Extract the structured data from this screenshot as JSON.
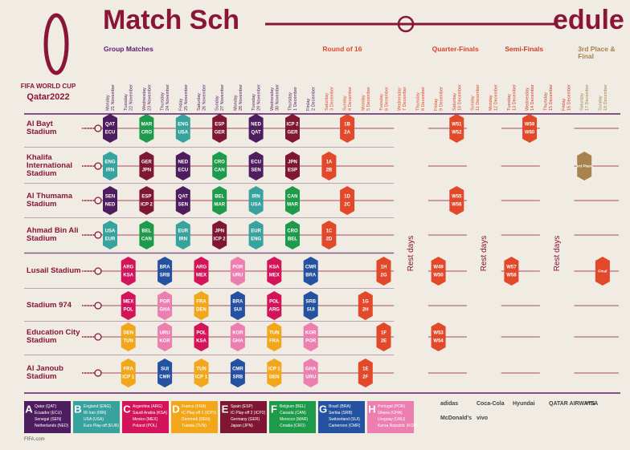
{
  "header": {
    "title_left": "Match Sch",
    "title_right": "edule",
    "logo_line1": "FIFA WORLD CUP",
    "logo_line2": "Qatar2022"
  },
  "stages": [
    {
      "label": "Group Matches",
      "color": "#5a2069",
      "days": [
        {
          "day": "Monday",
          "date": "21 November"
        },
        {
          "day": "Tuesday",
          "date": "22 November"
        },
        {
          "day": "Wednesday",
          "date": "23 November"
        },
        {
          "day": "Thursday",
          "date": "24 November"
        },
        {
          "day": "Friday",
          "date": "25 November"
        },
        {
          "day": "Saturday",
          "date": "26 November"
        },
        {
          "day": "Sunday",
          "date": "27 November"
        },
        {
          "day": "Monday",
          "date": "28 November"
        },
        {
          "day": "Tuesday",
          "date": "29 November"
        },
        {
          "day": "Wednesday",
          "date": "30 November"
        },
        {
          "day": "Thursday",
          "date": "1 December"
        },
        {
          "day": "Friday",
          "date": "2 December"
        }
      ]
    },
    {
      "label": "Round of 16",
      "color": "#e2482a",
      "days": [
        {
          "day": "Saturday",
          "date": "3 December"
        },
        {
          "day": "Sunday",
          "date": "4 December"
        },
        {
          "day": "Monday",
          "date": "5 December"
        },
        {
          "day": "Tuesday",
          "date": "6 December"
        },
        {
          "day": "Wednesday",
          "date": "7 December"
        },
        {
          "day": "Thursday",
          "date": "8 December"
        }
      ]
    },
    {
      "label": "Quarter-Finals",
      "color": "#d9452b",
      "days": [
        {
          "day": "Friday",
          "date": "9 December"
        },
        {
          "day": "Saturday",
          "date": "10 December"
        },
        {
          "day": "Sunday",
          "date": "11 December"
        },
        {
          "day": "Monday",
          "date": "12 December"
        }
      ]
    },
    {
      "label": "Semi-Finals",
      "color": "#c8402c",
      "days": [
        {
          "day": "Tuesday",
          "date": "13 December"
        },
        {
          "day": "Wednesday",
          "date": "14 December"
        },
        {
          "day": "Thursday",
          "date": "15 December"
        },
        {
          "day": "Friday",
          "date": "16 December"
        }
      ]
    },
    {
      "label": "3rd Place & Final",
      "color": "#a8824f",
      "days": [
        {
          "day": "Saturday",
          "date": "17 December"
        },
        {
          "day": "Sunday",
          "date": "18 December"
        }
      ]
    }
  ],
  "rest_days": [
    "Rest days",
    "Rest days",
    "Rest days"
  ],
  "stadiums": [
    {
      "name": "Al Bayt Stadium",
      "slots": [
        {
          "teams": [
            "QAT",
            "ECU"
          ],
          "color": "#4e1d5f"
        },
        null,
        {
          "teams": [
            "MAR",
            "CRO"
          ],
          "color": "#1e9a4b"
        },
        null,
        {
          "teams": [
            "ENG",
            "USA"
          ],
          "color": "#38a39e"
        },
        null,
        {
          "teams": [
            "ESP",
            "GER"
          ],
          "color": "#7f1734"
        },
        null,
        {
          "teams": [
            "NED",
            "QAT"
          ],
          "color": "#4e1d5f"
        },
        null,
        {
          "teams": [
            "ICP 2",
            "GER"
          ],
          "color": "#7f1734"
        },
        null,
        null,
        {
          "teams": [
            "1B",
            "2A"
          ],
          "color": "#e2482a"
        },
        null,
        null,
        null,
        null,
        null,
        {
          "teams": [
            "W51",
            "W52"
          ],
          "color": "#e2482a"
        },
        null,
        null,
        null,
        {
          "teams": [
            "W59",
            "W60"
          ],
          "color": "#e2482a"
        },
        null,
        null,
        null,
        null
      ]
    },
    {
      "name": "Khalifa International Stadium",
      "slots": [
        {
          "teams": [
            "ENG",
            "IRN"
          ],
          "color": "#38a39e"
        },
        null,
        {
          "teams": [
            "GER",
            "JPN"
          ],
          "color": "#7f1734"
        },
        null,
        {
          "teams": [
            "NED",
            "ECU"
          ],
          "color": "#4e1d5f"
        },
        null,
        {
          "teams": [
            "CRO",
            "CAN"
          ],
          "color": "#1e9a4b"
        },
        null,
        {
          "teams": [
            "ECU",
            "SEN"
          ],
          "color": "#4e1d5f"
        },
        null,
        {
          "teams": [
            "JPN",
            "ESP"
          ],
          "color": "#7f1734"
        },
        null,
        {
          "teams": [
            "1A",
            "2B"
          ],
          "color": "#e2482a"
        },
        null,
        null,
        null,
        null,
        null,
        null,
        null,
        null,
        null,
        null,
        null,
        null,
        null,
        {
          "teams": [
            "3rd Place"
          ],
          "color": "#a8824f"
        },
        null
      ]
    },
    {
      "name": "Al Thumama Stadium",
      "slots": [
        {
          "teams": [
            "SEN",
            "NED"
          ],
          "color": "#4e1d5f"
        },
        null,
        {
          "teams": [
            "ESP",
            "ICP 2"
          ],
          "color": "#7f1734"
        },
        null,
        {
          "teams": [
            "QAT",
            "SEN"
          ],
          "color": "#4e1d5f"
        },
        null,
        {
          "teams": [
            "BEL",
            "MAR"
          ],
          "color": "#1e9a4b"
        },
        null,
        {
          "teams": [
            "IRN",
            "USA"
          ],
          "color": "#38a39e"
        },
        null,
        {
          "teams": [
            "CAN",
            "MAR"
          ],
          "color": "#1e9a4b"
        },
        null,
        null,
        {
          "teams": [
            "1D",
            "2C"
          ],
          "color": "#e2482a"
        },
        null,
        null,
        null,
        null,
        null,
        {
          "teams": [
            "W55",
            "W56"
          ],
          "color": "#e2482a"
        },
        null,
        null,
        null,
        null,
        null,
        null,
        null,
        null
      ]
    },
    {
      "name": "Ahmad Bin Ali Stadium",
      "slots": [
        {
          "teams": [
            "USA",
            "EUR"
          ],
          "color": "#38a39e"
        },
        null,
        {
          "teams": [
            "BEL",
            "CAN"
          ],
          "color": "#1e9a4b"
        },
        null,
        {
          "teams": [
            "EUR",
            "IRN"
          ],
          "color": "#38a39e"
        },
        null,
        {
          "teams": [
            "JPN",
            "ICP 2"
          ],
          "color": "#7f1734"
        },
        null,
        {
          "teams": [
            "EUR",
            "ENG"
          ],
          "color": "#38a39e"
        },
        null,
        {
          "teams": [
            "CRO",
            "BEL"
          ],
          "color": "#1e9a4b"
        },
        null,
        {
          "teams": [
            "1C",
            "2D"
          ],
          "color": "#e2482a"
        },
        null,
        null,
        null,
        null,
        null,
        null,
        null,
        null,
        null,
        null,
        null,
        null,
        null,
        null,
        null
      ]
    },
    {
      "name": "Lusail Stadium",
      "slots": [
        null,
        {
          "teams": [
            "ARG",
            "KSA"
          ],
          "color": "#d3145a"
        },
        null,
        {
          "teams": [
            "BRA",
            "SRB"
          ],
          "color": "#2451a0"
        },
        null,
        {
          "teams": [
            "ARG",
            "MEX"
          ],
          "color": "#d3145a"
        },
        null,
        {
          "teams": [
            "POR",
            "URU"
          ],
          "color": "#ec7fb0"
        },
        null,
        {
          "teams": [
            "KSA",
            "MEX"
          ],
          "color": "#d3145a"
        },
        null,
        {
          "teams": [
            "CMR",
            "BRA"
          ],
          "color": "#2451a0"
        },
        null,
        null,
        null,
        {
          "teams": [
            "1H",
            "2G"
          ],
          "color": "#e2482a"
        },
        null,
        null,
        {
          "teams": [
            "W49",
            "W50"
          ],
          "color": "#e2482a"
        },
        null,
        null,
        null,
        {
          "teams": [
            "W57",
            "W58"
          ],
          "color": "#e2482a"
        },
        null,
        null,
        null,
        null,
        {
          "teams": [
            "Final"
          ],
          "color": "#e2482a"
        }
      ]
    },
    {
      "name": "Stadium 974",
      "slots": [
        null,
        {
          "teams": [
            "MEX",
            "POL"
          ],
          "color": "#d3145a"
        },
        null,
        {
          "teams": [
            "POR",
            "GHA"
          ],
          "color": "#ec7fb0"
        },
        null,
        {
          "teams": [
            "FRA",
            "DEN"
          ],
          "color": "#f2a71b"
        },
        null,
        {
          "teams": [
            "BRA",
            "SUI"
          ],
          "color": "#2451a0"
        },
        null,
        {
          "teams": [
            "POL",
            "ARG"
          ],
          "color": "#d3145a"
        },
        null,
        {
          "teams": [
            "SRB",
            "SUI"
          ],
          "color": "#2451a0"
        },
        null,
        null,
        {
          "teams": [
            "1G",
            "2H"
          ],
          "color": "#e2482a"
        },
        null,
        null,
        null,
        null,
        null,
        null,
        null,
        null,
        null,
        null,
        null,
        null,
        null
      ]
    },
    {
      "name": "Education City Stadium",
      "slots": [
        null,
        {
          "teams": [
            "DEN",
            "TUN"
          ],
          "color": "#f2a71b"
        },
        null,
        {
          "teams": [
            "URU",
            "KOR"
          ],
          "color": "#ec7fb0"
        },
        null,
        {
          "teams": [
            "POL",
            "KSA"
          ],
          "color": "#d3145a"
        },
        null,
        {
          "teams": [
            "KOR",
            "GHA"
          ],
          "color": "#ec7fb0"
        },
        null,
        {
          "teams": [
            "TUN",
            "FRA"
          ],
          "color": "#f2a71b"
        },
        null,
        {
          "teams": [
            "KOR",
            "POR"
          ],
          "color": "#ec7fb0"
        },
        null,
        null,
        null,
        {
          "teams": [
            "1F",
            "2E"
          ],
          "color": "#e2482a"
        },
        null,
        null,
        {
          "teams": [
            "W53",
            "W54"
          ],
          "color": "#e2482a"
        },
        null,
        null,
        null,
        null,
        null,
        null,
        null,
        null,
        null
      ]
    },
    {
      "name": "Al Janoub Stadium",
      "slots": [
        null,
        {
          "teams": [
            "FRA",
            "ICP 1"
          ],
          "color": "#f2a71b"
        },
        null,
        {
          "teams": [
            "SUI",
            "CMR"
          ],
          "color": "#2451a0"
        },
        null,
        {
          "teams": [
            "TUN",
            "ICP 1"
          ],
          "color": "#f2a71b"
        },
        null,
        {
          "teams": [
            "CMR",
            "SRB"
          ],
          "color": "#2451a0"
        },
        null,
        {
          "teams": [
            "ICP 1",
            "DEN"
          ],
          "color": "#f2a71b"
        },
        null,
        {
          "teams": [
            "GHA",
            "URU"
          ],
          "color": "#ec7fb0"
        },
        null,
        null,
        {
          "teams": [
            "1E",
            "2F"
          ],
          "color": "#e2482a"
        },
        null,
        null,
        null,
        null,
        null,
        null,
        null,
        null,
        null,
        null,
        null,
        null,
        null
      ]
    }
  ],
  "groups": [
    {
      "letter": "A",
      "color": "#4e1d5f",
      "teams": [
        "Qatar (QAT)",
        "Ecuador (ECU)",
        "Senegal (SEN)",
        "Netherlands (NED)"
      ]
    },
    {
      "letter": "B",
      "color": "#38a39e",
      "teams": [
        "England (ENG)",
        "IR Iran (IRN)",
        "USA (USA)",
        "Euro Play-off (EUR)"
      ]
    },
    {
      "letter": "C",
      "color": "#d3145a",
      "teams": [
        "Argentina (ARG)",
        "Saudi Arabia (KSA)",
        "Mexico (MEX)",
        "Poland (POL)"
      ]
    },
    {
      "letter": "D",
      "color": "#f2a71b",
      "teams": [
        "France (FRA)",
        "IC Play-off 1 (ICP1)",
        "Denmark (DEN)",
        "Tunisia (TUN)"
      ]
    },
    {
      "letter": "E",
      "color": "#7f1734",
      "teams": [
        "Spain (ESP)",
        "IC Play-off 2 (ICP2)",
        "Germany (GER)",
        "Japan (JPN)"
      ]
    },
    {
      "letter": "F",
      "color": "#1e9a4b",
      "teams": [
        "Belgium (BEL)",
        "Canada (CAN)",
        "Morocco (MAR)",
        "Croatia (CRO)"
      ]
    },
    {
      "letter": "G",
      "color": "#2451a0",
      "teams": [
        "Brazil (BRA)",
        "Serbia (SRB)",
        "Switzerland (SUI)",
        "Cameroon (CMR)"
      ]
    },
    {
      "letter": "H",
      "color": "#ec7fb0",
      "teams": [
        "Portugal (POR)",
        "Ghana (GHA)",
        "Uruguay (URU)",
        "Korea Republic (KOR)"
      ]
    }
  ],
  "sponsors": [
    "adidas",
    "Coca-Cola",
    "Hyundai",
    "QATAR AIRWAYS",
    "VISA",
    "McDonald's",
    "vivo"
  ],
  "footer": {
    "site": "FIFA.com"
  }
}
